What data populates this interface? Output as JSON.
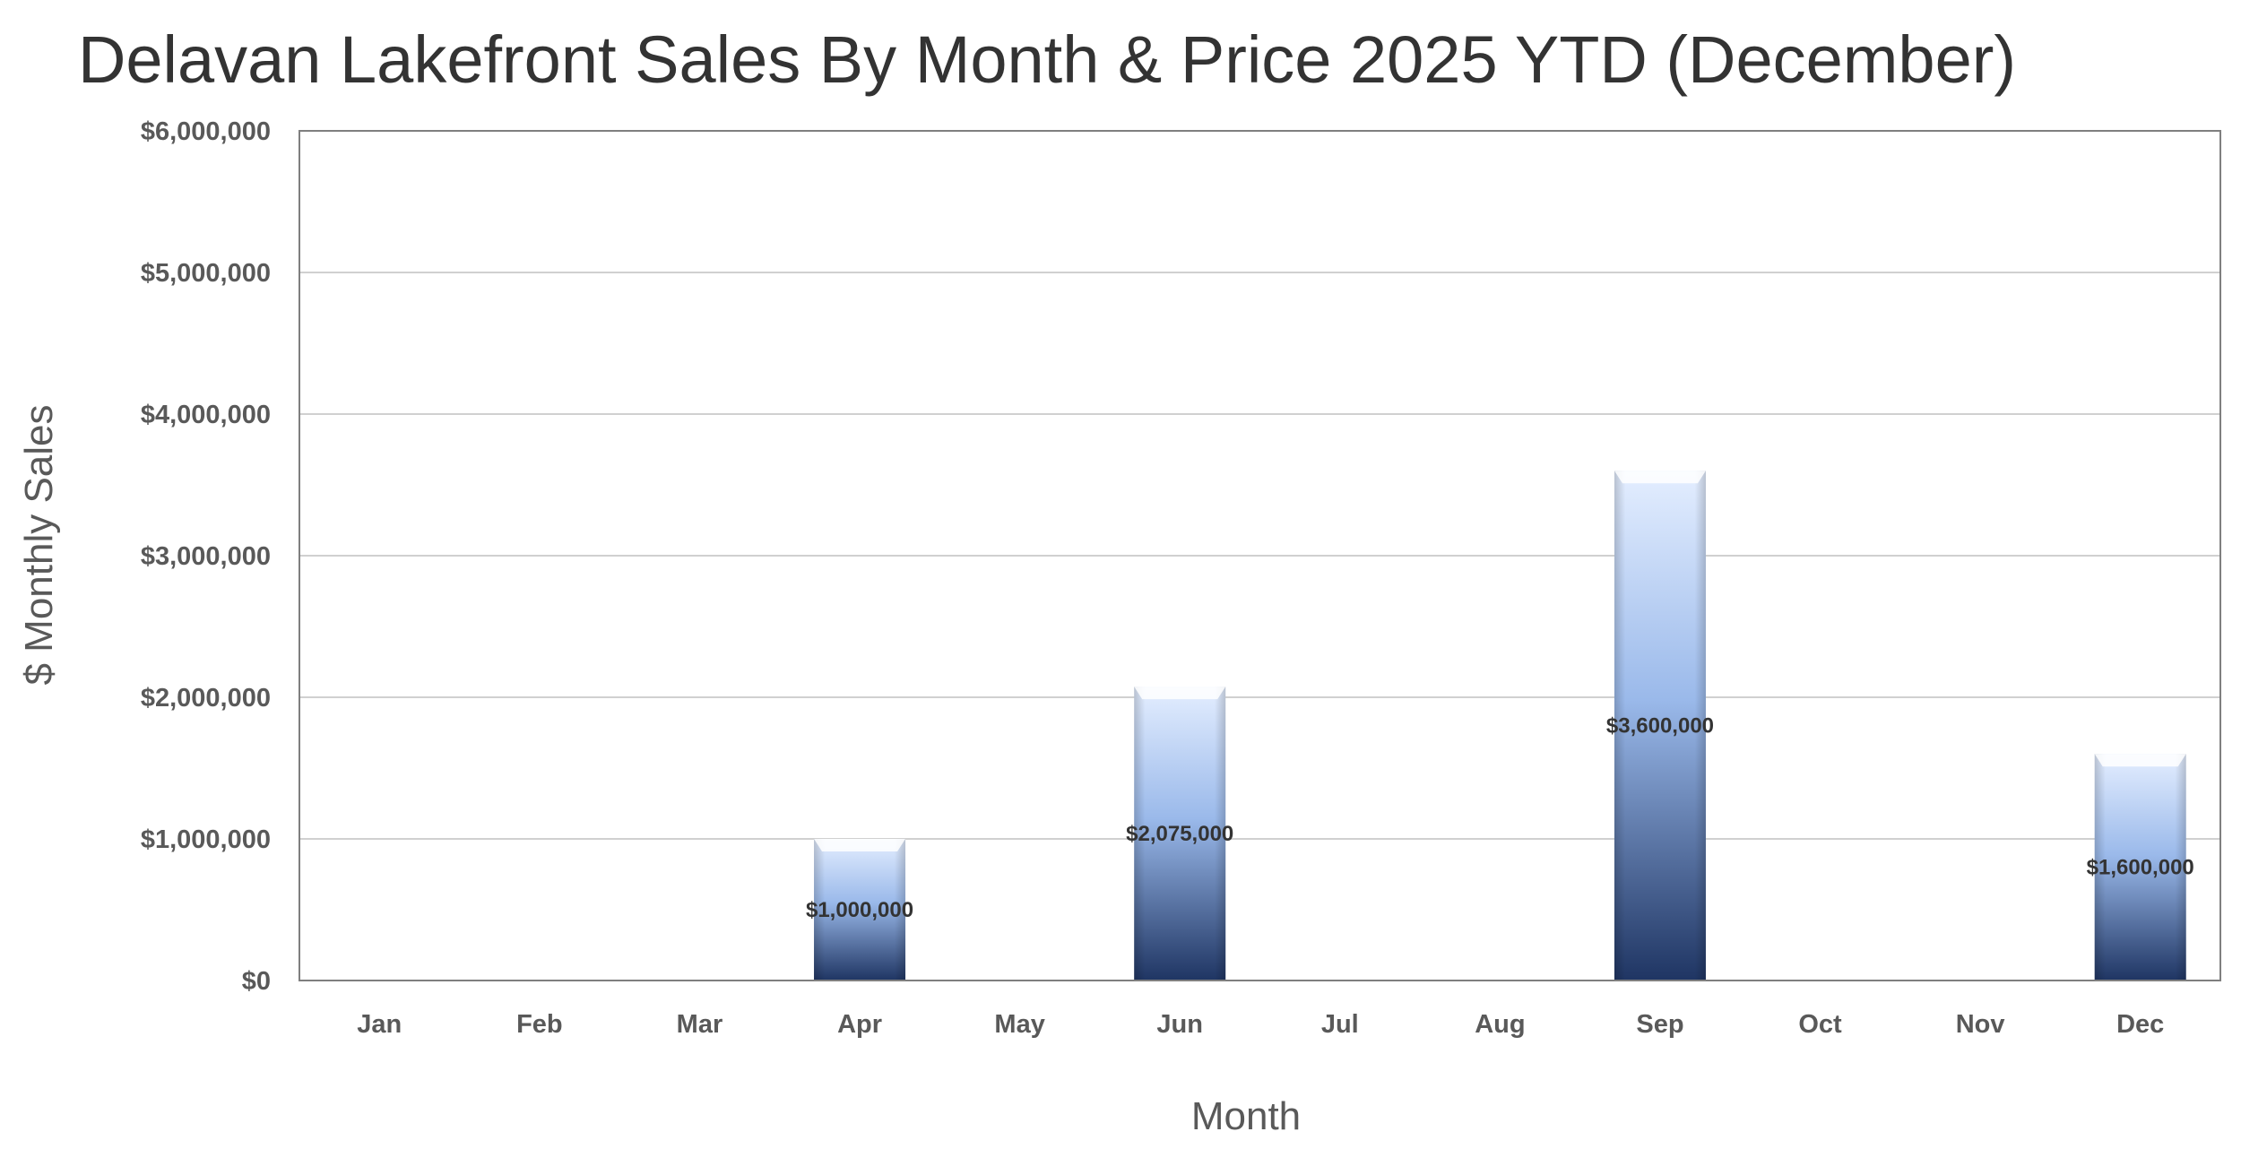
{
  "chart_data": {
    "type": "bar",
    "title": "Delavan Lakefront Sales By Month & Price 2025 YTD (December)",
    "xlabel": "Month",
    "ylabel": "$ Monthly Sales",
    "categories": [
      "Jan",
      "Feb",
      "Mar",
      "Apr",
      "May",
      "Jun",
      "Jul",
      "Aug",
      "Sep",
      "Oct",
      "Nov",
      "Dec"
    ],
    "values": [
      0,
      0,
      0,
      1000000,
      0,
      2075000,
      0,
      0,
      3600000,
      0,
      0,
      1600000
    ],
    "data_labels": [
      "",
      "",
      "",
      "$1,000,000",
      "",
      "$2,075,000",
      "",
      "",
      "$3,600,000",
      "",
      "",
      "$1,600,000"
    ],
    "ylim": [
      0,
      6000000
    ],
    "yticks": [
      0,
      1000000,
      2000000,
      3000000,
      4000000,
      5000000,
      6000000
    ],
    "ytick_labels": [
      "$0",
      "$1,000,000",
      "$2,000,000",
      "$3,000,000",
      "$4,000,000",
      "$5,000,000",
      "$6,000,000"
    ],
    "grid": true,
    "legend": "none",
    "colors": {
      "bar_top": "#e4eeff",
      "bar_mid": "#9ab9ea",
      "bar_bottom": "#1f3563",
      "bar_cap": "#ffffff",
      "text": "#595959",
      "title_text": "#333333"
    }
  }
}
